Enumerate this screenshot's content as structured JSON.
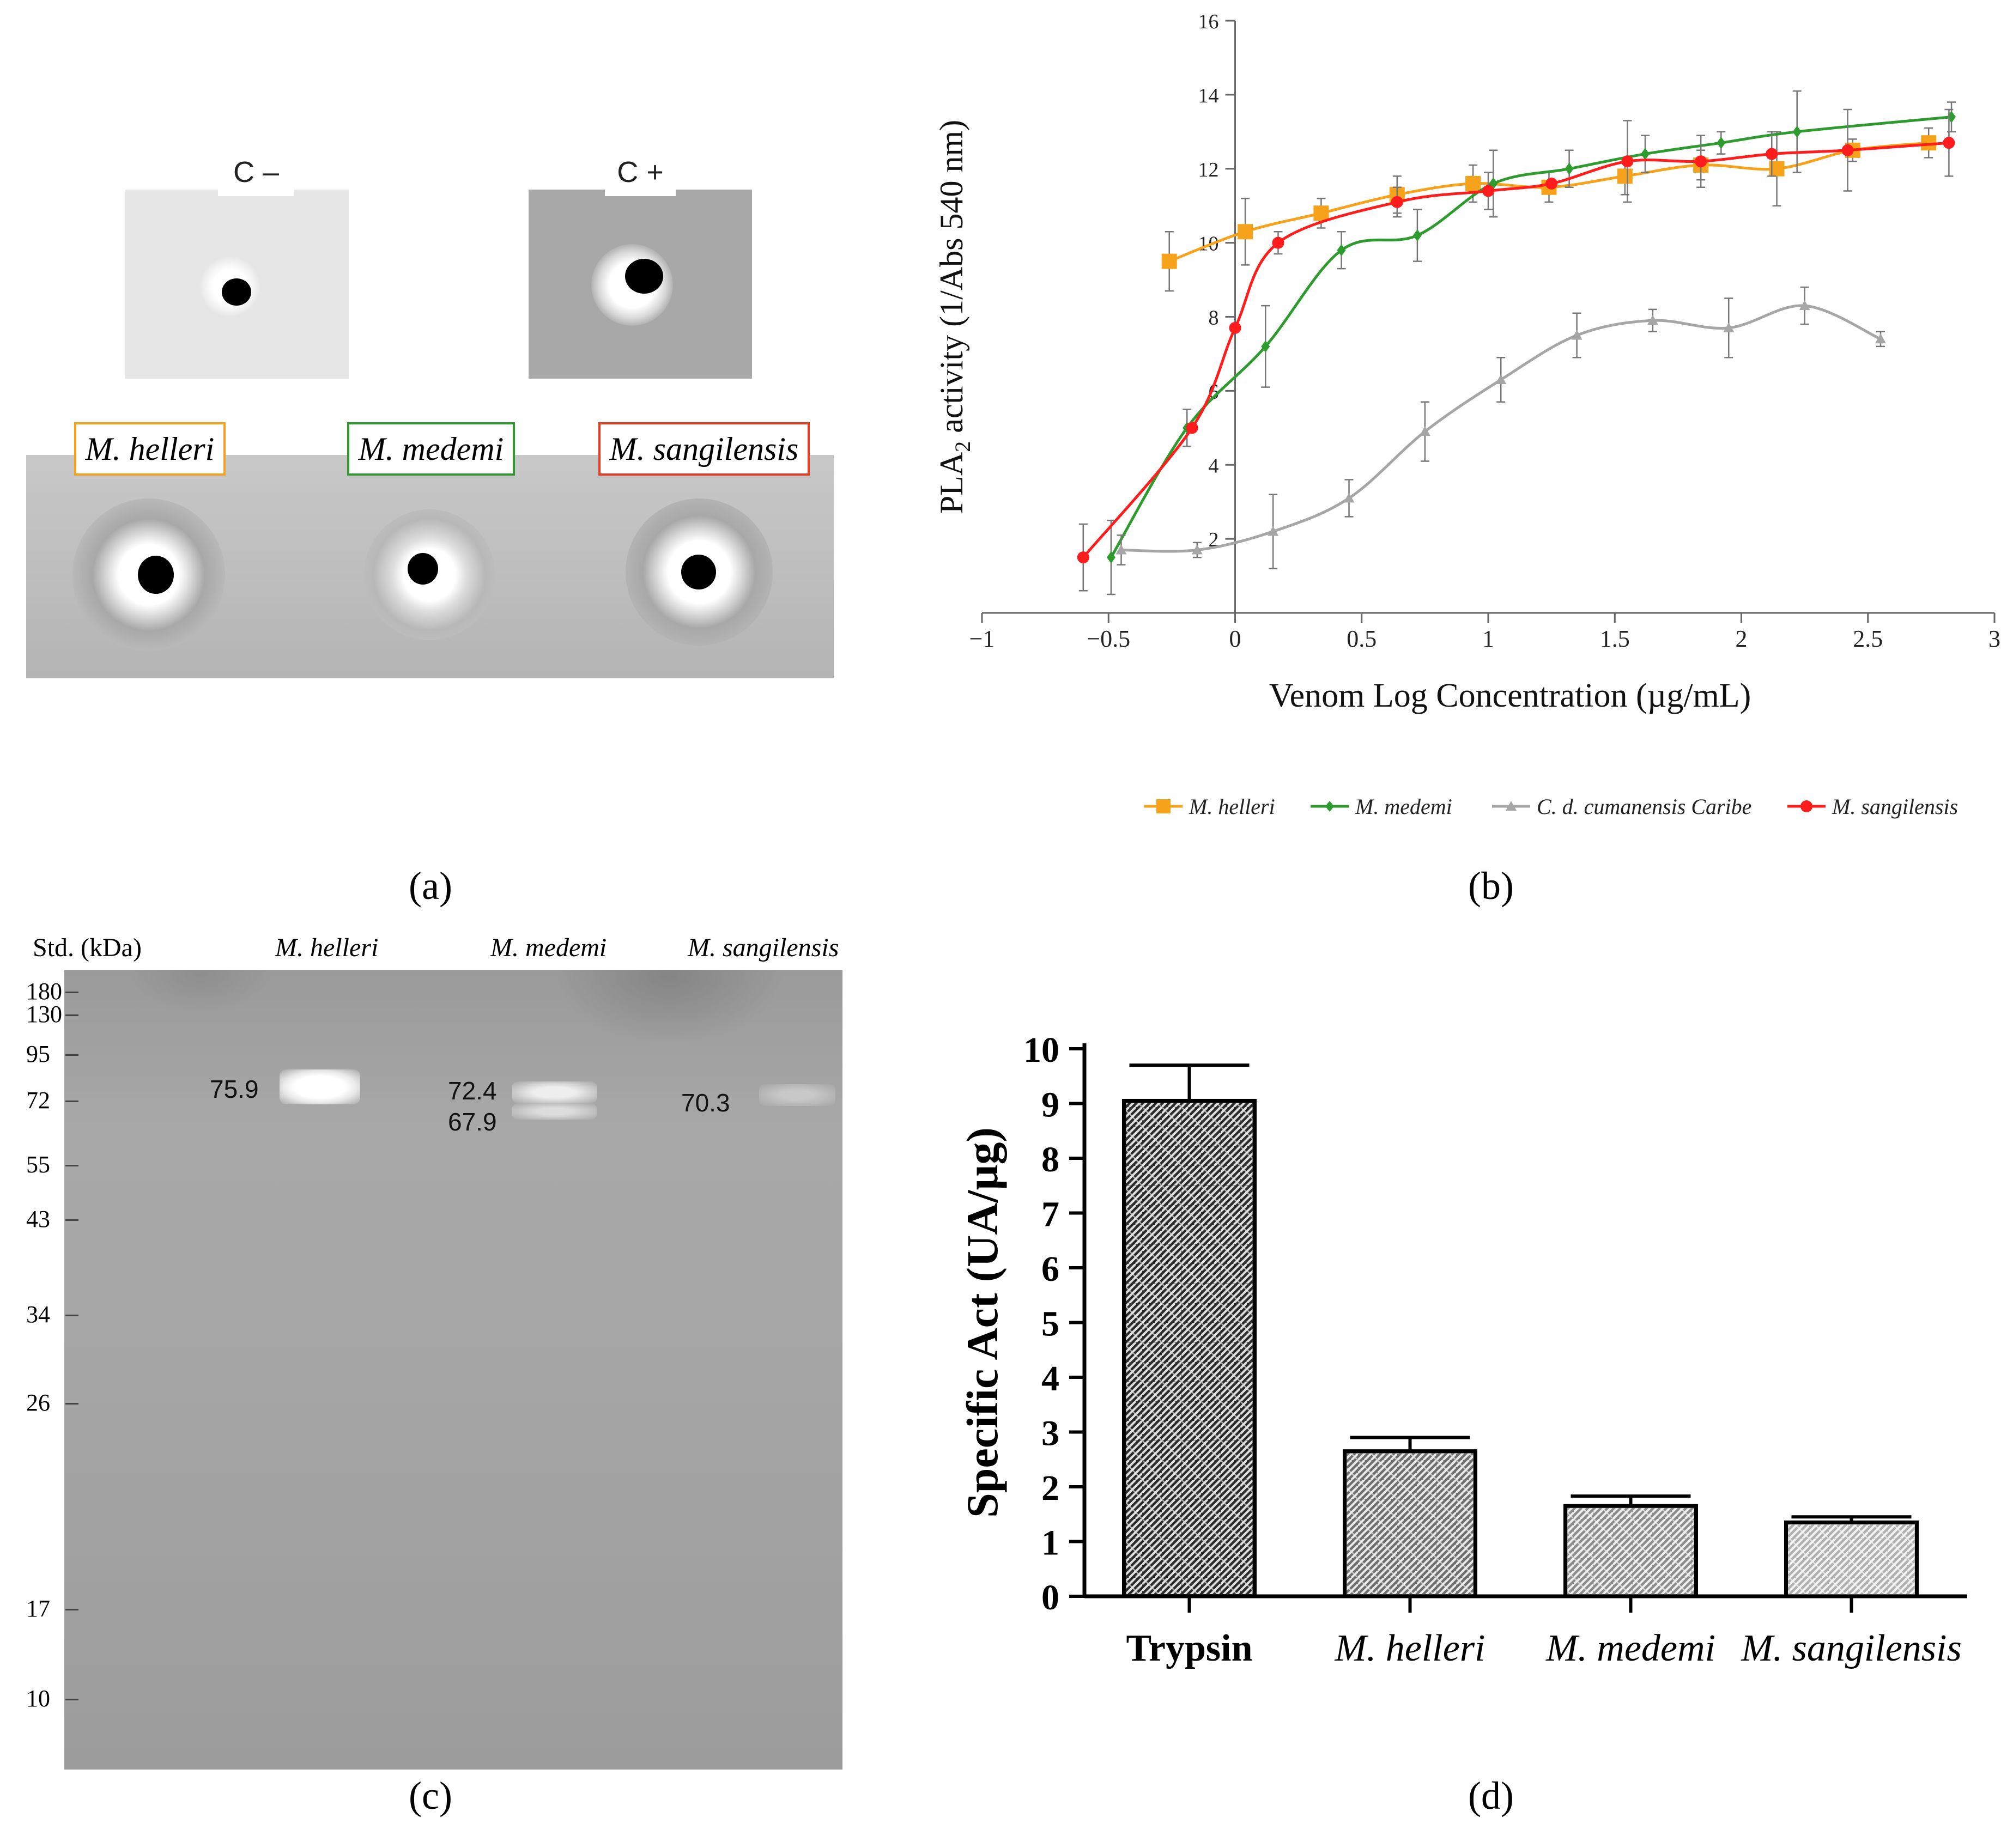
{
  "panel_a": {
    "label": "(a)",
    "controls": [
      {
        "name": "C –"
      },
      {
        "name": "C +"
      }
    ],
    "species_boxes": [
      {
        "name": "M. helleri",
        "color": "#f5a21b"
      },
      {
        "name": "M. medemi",
        "color": "#2e9b2e"
      },
      {
        "name": "M. sangilensis",
        "color": "#ea3a22"
      }
    ]
  },
  "panel_b": {
    "label": "(b)"
  },
  "panel_c": {
    "label": "(c)",
    "header_std": "Std. (kDa)",
    "lanes": [
      "M. helleri",
      "M. medemi",
      "M. sangilensis"
    ],
    "ladder": [
      "180",
      "130",
      "95",
      "72",
      "55",
      "43",
      "34",
      "26",
      "17",
      "10"
    ],
    "band_labels": {
      "helleri": "75.9",
      "medemi_top": "72.4",
      "medemi_bottom": "67.9",
      "sangilensis": "70.3"
    }
  },
  "panel_d": {
    "label": "(d)"
  },
  "chart_data": [
    {
      "type": "line",
      "title": "",
      "xlabel": "Venom Log Concentration (µg/mL)",
      "ylabel": "PLA2 activity (1/Abs 540 nm)",
      "ylabel_main": "PLA",
      "ylabel_sub": "2",
      "ylabel_rest": " activity (1/Abs 540 nm)",
      "xlim": [
        -1,
        3
      ],
      "ylim": [
        0,
        16
      ],
      "xticks": [
        "−1",
        "−0.5",
        "0",
        "0.5",
        "1",
        "1.5",
        "2",
        "2.5",
        "3"
      ],
      "xtick_values": [
        -1,
        -0.5,
        0,
        0.5,
        1,
        1.5,
        2,
        2.5,
        3
      ],
      "yticks": [
        "2",
        "4",
        "6",
        "8",
        "10",
        "12",
        "14",
        "16"
      ],
      "ytick_values": [
        2,
        4,
        6,
        8,
        10,
        12,
        14,
        16
      ],
      "legend_position": "bottom",
      "series": [
        {
          "name": "M. helleri",
          "color": "#f7a21b",
          "marker": "square",
          "x": [
            -0.26,
            0.04,
            0.34,
            0.64,
            0.94,
            1.24,
            1.54,
            1.84,
            2.14,
            2.44,
            2.74
          ],
          "y": [
            9.5,
            10.3,
            10.8,
            11.3,
            11.6,
            11.5,
            11.8,
            12.1,
            12.0,
            12.5,
            12.7
          ],
          "err": [
            0.8,
            0.9,
            0.4,
            0.5,
            0.5,
            0.4,
            0.5,
            0.4,
            1.0,
            0.3,
            0.4
          ]
        },
        {
          "name": "M. medemi",
          "color": "#2e9b2e",
          "marker": "diamond",
          "x": [
            -0.49,
            -0.19,
            0.12,
            0.42,
            0.72,
            1.02,
            1.32,
            1.62,
            1.92,
            2.22,
            2.83
          ],
          "y": [
            1.5,
            5.0,
            7.2,
            9.8,
            10.2,
            11.6,
            12.0,
            12.4,
            12.7,
            13.0,
            13.4
          ],
          "err": [
            1.0,
            0.5,
            1.1,
            0.5,
            0.7,
            0.9,
            0.5,
            0.5,
            0.3,
            1.1,
            0.4
          ]
        },
        {
          "name": "C. d. cumanensis Caribe",
          "color": "#a6a6a6",
          "marker": "triangle",
          "x": [
            -0.45,
            -0.15,
            0.15,
            0.45,
            0.75,
            1.05,
            1.35,
            1.65,
            1.95,
            2.25,
            2.55
          ],
          "y": [
            1.7,
            1.7,
            2.2,
            3.1,
            4.9,
            6.3,
            7.5,
            7.9,
            7.7,
            8.3,
            7.4
          ],
          "err": [
            0.4,
            0.2,
            1.0,
            0.5,
            0.8,
            0.6,
            0.6,
            0.3,
            0.8,
            0.5,
            0.2
          ]
        },
        {
          "name": "M. sangilensis",
          "color": "#ff1c1c",
          "marker": "circle",
          "x": [
            -0.6,
            -0.17,
            0.0,
            0.17,
            0.64,
            1.0,
            1.25,
            1.55,
            1.84,
            2.12,
            2.42,
            2.82
          ],
          "y": [
            1.5,
            5.0,
            7.7,
            10.0,
            11.1,
            11.4,
            11.6,
            12.2,
            12.2,
            12.4,
            12.5,
            12.7
          ],
          "err": [
            0.9,
            0.0,
            0.0,
            0.3,
            0.4,
            0.5,
            0.0,
            1.1,
            0.7,
            0.6,
            1.1,
            0.9
          ]
        }
      ]
    },
    {
      "type": "bar",
      "title": "",
      "xlabel": "",
      "ylabel": "Specific Act (UA/µg)",
      "ylim": [
        0,
        10
      ],
      "yticks": [
        "0",
        "1",
        "2",
        "3",
        "4",
        "5",
        "6",
        "7",
        "8",
        "9",
        "10"
      ],
      "ytick_values": [
        0,
        1,
        2,
        3,
        4,
        5,
        6,
        7,
        8,
        9,
        10
      ],
      "categories": [
        "Trypsin",
        "M. helleri",
        "M. medemi",
        "M. sangilensis"
      ],
      "category_italic": [
        false,
        true,
        true,
        true
      ],
      "values": [
        9.05,
        2.65,
        1.65,
        1.35
      ],
      "errors": [
        0.65,
        0.25,
        0.18,
        0.1
      ],
      "fills": [
        "#2b2b2b",
        "#6e6e6e",
        "#8c8c8c",
        "#b0b0b0"
      ]
    }
  ]
}
